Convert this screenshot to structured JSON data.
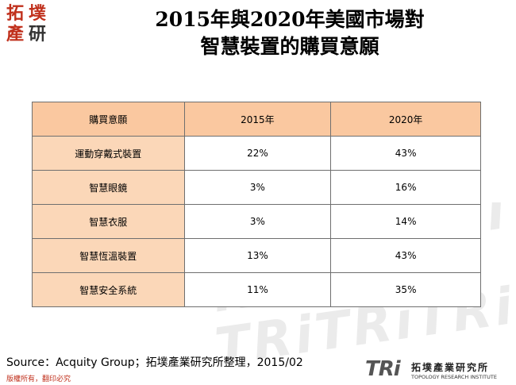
{
  "logo": {
    "chars": [
      "拓",
      "墣",
      "產",
      "研"
    ],
    "colors": [
      "#c0301c",
      "#c0301c",
      "#c0301c",
      "#333333"
    ]
  },
  "title": {
    "line1": "2015年與2020年美國市場對",
    "line2": "智慧裝置的購買意願"
  },
  "table": {
    "headers": [
      "購買意願",
      "2015年",
      "2020年"
    ],
    "rows": [
      {
        "label": "運動穿戴式裝置",
        "y2015": "22%",
        "y2020": "43%"
      },
      {
        "label": "智慧眼鏡",
        "y2015": "3%",
        "y2020": "16%"
      },
      {
        "label": "智慧衣服",
        "y2015": "3%",
        "y2020": "14%"
      },
      {
        "label": "智慧恆溫裝置",
        "y2015": "13%",
        "y2020": "43%"
      },
      {
        "label": "智慧安全系統",
        "y2015": "11%",
        "y2020": "35%"
      }
    ],
    "colors": {
      "header_bg": "#fac8a0",
      "label_bg": "#fbd7b8",
      "border": "#6f6f6f"
    }
  },
  "source": "Source：Acquity Group；拓墣產業研究所整理，2015/02",
  "copyright": "版權所有，翻印必究",
  "footer_logo": {
    "mark": "TRi",
    "name_cn": "拓墣產業研究所",
    "name_en": "TOPOLOGY RESEARCH INSTITUTE"
  }
}
